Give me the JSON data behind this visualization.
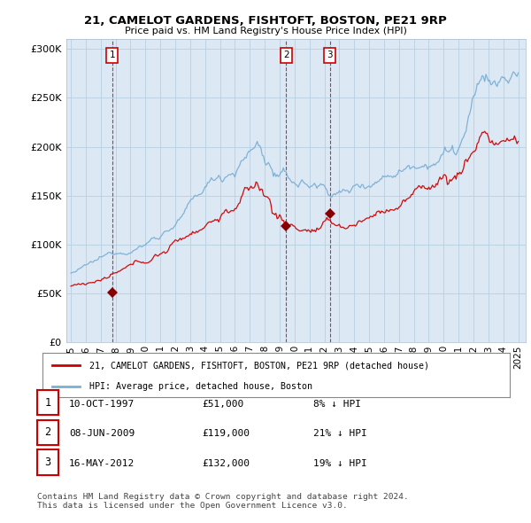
{
  "title_line1": "21, CAMELOT GARDENS, FISHTOFT, BOSTON, PE21 9RP",
  "title_line2": "Price paid vs. HM Land Registry's House Price Index (HPI)",
  "legend_entry1": "21, CAMELOT GARDENS, FISHTOFT, BOSTON, PE21 9RP (detached house)",
  "legend_entry2": "HPI: Average price, detached house, Boston",
  "table_rows": [
    {
      "num": "1",
      "date": "10-OCT-1997",
      "price": "£51,000",
      "pct": "8% ↓ HPI"
    },
    {
      "num": "2",
      "date": "08-JUN-2009",
      "price": "£119,000",
      "pct": "21% ↓ HPI"
    },
    {
      "num": "3",
      "date": "16-MAY-2012",
      "price": "£132,000",
      "pct": "19% ↓ HPI"
    }
  ],
  "footnote": "Contains HM Land Registry data © Crown copyright and database right 2024.\nThis data is licensed under the Open Government Licence v3.0.",
  "sale_color": "#cc0000",
  "hpi_color": "#7bafd4",
  "marker_color": "#880000",
  "sale_dates_decimal": [
    1997.78,
    2009.44,
    2012.37
  ],
  "sale_prices": [
    51000,
    119000,
    132000
  ],
  "ylim": [
    0,
    310000
  ],
  "yticks": [
    0,
    50000,
    100000,
    150000,
    200000,
    250000,
    300000
  ],
  "background_color": "#ffffff",
  "plot_bg_color": "#dce9f5",
  "grid_color": "#b8cfe0",
  "vline_color": "#cc0000",
  "marker_nums": [
    "1",
    "2",
    "3"
  ],
  "xmin": 1994.7,
  "xmax": 2025.5
}
